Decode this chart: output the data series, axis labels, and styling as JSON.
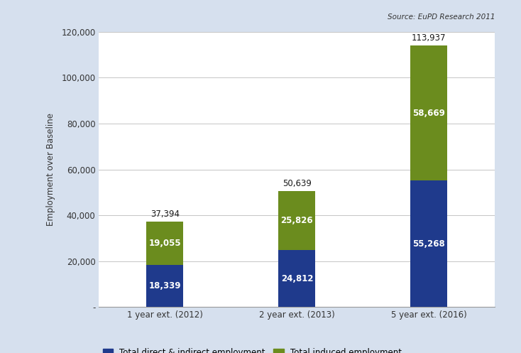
{
  "categories": [
    "1 year ext. (2012)",
    "2 year ext. (2013)",
    "5 year ext. (2016)"
  ],
  "direct_indirect": [
    18339,
    24812,
    55268
  ],
  "induced": [
    19055,
    25826,
    58669
  ],
  "totals": [
    37394,
    50639,
    113937
  ],
  "bar_color_direct": "#1F3A8C",
  "bar_color_induced": "#6B8C1E",
  "ylabel": "Employment over Baseline",
  "ylim": [
    0,
    120000
  ],
  "yticks": [
    0,
    20000,
    40000,
    60000,
    80000,
    100000,
    120000
  ],
  "ytick_labels": [
    "-",
    "20,000",
    "40,000",
    "60,000",
    "80,000",
    "100,000",
    "120,000"
  ],
  "source_text": "Source: EuPD Research 2011",
  "legend_direct": "Total direct & indirect employment",
  "legend_induced": "Total induced employment",
  "background_outer": "#D6E0EE",
  "background_inner": "#FFFFFF",
  "bar_width": 0.28,
  "label_fontsize": 8.5,
  "tick_fontsize": 8.5
}
